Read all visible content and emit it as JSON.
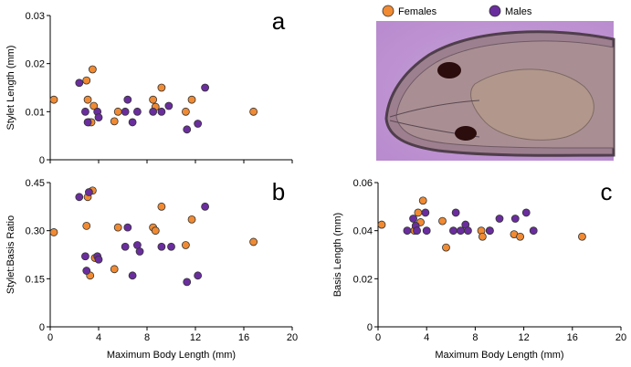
{
  "legend": {
    "females": "Females",
    "males": "Males"
  },
  "colors": {
    "female": "#f08a33",
    "male": "#6a2d9e",
    "edge": "#333333"
  },
  "micrograph": {
    "name": "nematode-head-micrograph",
    "description_color": "#c49ad6"
  },
  "chart_data": [
    {
      "id": "a",
      "type": "scatter",
      "panel_label": "a",
      "xlabel": "",
      "ylabel": "Stylet Length (mm)",
      "xlim": [
        0,
        20
      ],
      "ylim": [
        0,
        0.03
      ],
      "xticks": [
        0,
        4,
        8,
        12,
        16,
        20
      ],
      "xtick_labels": [
        "",
        "",
        "",
        "",
        "",
        ""
      ],
      "yticks": [
        0,
        0.01,
        0.02,
        0.03
      ],
      "ytick_labels": [
        "0",
        "0.01",
        "0.02",
        "0.03"
      ],
      "series": [
        {
          "name": "Females",
          "x": [
            0.3,
            3.0,
            3.1,
            3.2,
            3.4,
            3.5,
            3.6,
            5.3,
            5.6,
            8.5,
            8.7,
            9.2,
            11.2,
            11.7,
            16.8
          ],
          "y": [
            0.0125,
            0.0165,
            0.0125,
            0.0078,
            0.0078,
            0.0188,
            0.0112,
            0.008,
            0.01,
            0.0125,
            0.011,
            0.015,
            0.01,
            0.0125,
            0.01
          ]
        },
        {
          "name": "Males",
          "x": [
            2.4,
            2.9,
            3.1,
            3.9,
            4.0,
            6.2,
            6.4,
            6.8,
            7.2,
            8.5,
            9.2,
            9.8,
            11.3,
            12.2,
            12.8
          ],
          "y": [
            0.016,
            0.01,
            0.0078,
            0.01,
            0.0088,
            0.01,
            0.0125,
            0.0078,
            0.01,
            0.01,
            0.01,
            0.0112,
            0.0063,
            0.0075,
            0.015
          ]
        }
      ]
    },
    {
      "id": "b",
      "type": "scatter",
      "panel_label": "b",
      "xlabel": "Maximum Body Length (mm)",
      "ylabel": "Stylet:Basis Ratio",
      "xlim": [
        0,
        20
      ],
      "ylim": [
        0,
        0.45
      ],
      "xticks": [
        0,
        4,
        8,
        12,
        16,
        20
      ],
      "xtick_labels": [
        "0",
        "4",
        "8",
        "12",
        "16",
        "20"
      ],
      "yticks": [
        0,
        0.15,
        0.3,
        0.45
      ],
      "ytick_labels": [
        "0",
        "0.15",
        "0.30",
        "0.45"
      ],
      "series": [
        {
          "name": "Females",
          "x": [
            0.3,
            3.0,
            3.1,
            3.3,
            3.5,
            3.7,
            5.3,
            5.6,
            8.5,
            8.7,
            9.2,
            11.2,
            11.7,
            16.8
          ],
          "y": [
            0.295,
            0.315,
            0.405,
            0.16,
            0.425,
            0.215,
            0.18,
            0.31,
            0.31,
            0.3,
            0.375,
            0.255,
            0.335,
            0.265
          ]
        },
        {
          "name": "Males",
          "x": [
            2.4,
            2.9,
            3.0,
            3.2,
            3.9,
            4.0,
            6.2,
            6.4,
            6.8,
            7.2,
            7.4,
            9.2,
            10.0,
            11.3,
            12.2,
            12.8
          ],
          "y": [
            0.405,
            0.22,
            0.175,
            0.42,
            0.22,
            0.21,
            0.25,
            0.31,
            0.16,
            0.255,
            0.235,
            0.25,
            0.25,
            0.14,
            0.16,
            0.375
          ]
        }
      ]
    },
    {
      "id": "c",
      "type": "scatter",
      "panel_label": "c",
      "xlabel": "Maximum Body Length (mm)",
      "ylabel": "Basis Length (mm)",
      "xlim": [
        0,
        20
      ],
      "ylim": [
        0,
        0.06
      ],
      "xticks": [
        0,
        4,
        8,
        12,
        16,
        20
      ],
      "xtick_labels": [
        "0",
        "4",
        "8",
        "12",
        "16",
        "20"
      ],
      "yticks": [
        0,
        0.02,
        0.04,
        0.06
      ],
      "ytick_labels": [
        "0",
        "0.02",
        "0.04",
        "0.06"
      ],
      "series": [
        {
          "name": "Females",
          "x": [
            0.3,
            3.0,
            3.3,
            3.5,
            3.7,
            5.3,
            5.6,
            8.5,
            8.6,
            9.2,
            11.2,
            11.7,
            16.8
          ],
          "y": [
            0.0425,
            0.04,
            0.0475,
            0.0435,
            0.0525,
            0.044,
            0.033,
            0.04,
            0.0375,
            0.04,
            0.0385,
            0.0375,
            0.0375
          ]
        },
        {
          "name": "Males",
          "x": [
            2.4,
            2.9,
            3.1,
            3.2,
            3.9,
            4.0,
            6.2,
            6.4,
            6.8,
            7.2,
            7.4,
            9.2,
            10.0,
            11.3,
            12.2,
            12.8
          ],
          "y": [
            0.04,
            0.045,
            0.042,
            0.04,
            0.0475,
            0.04,
            0.04,
            0.0475,
            0.04,
            0.0425,
            0.04,
            0.04,
            0.045,
            0.045,
            0.0475,
            0.04
          ]
        }
      ]
    }
  ]
}
